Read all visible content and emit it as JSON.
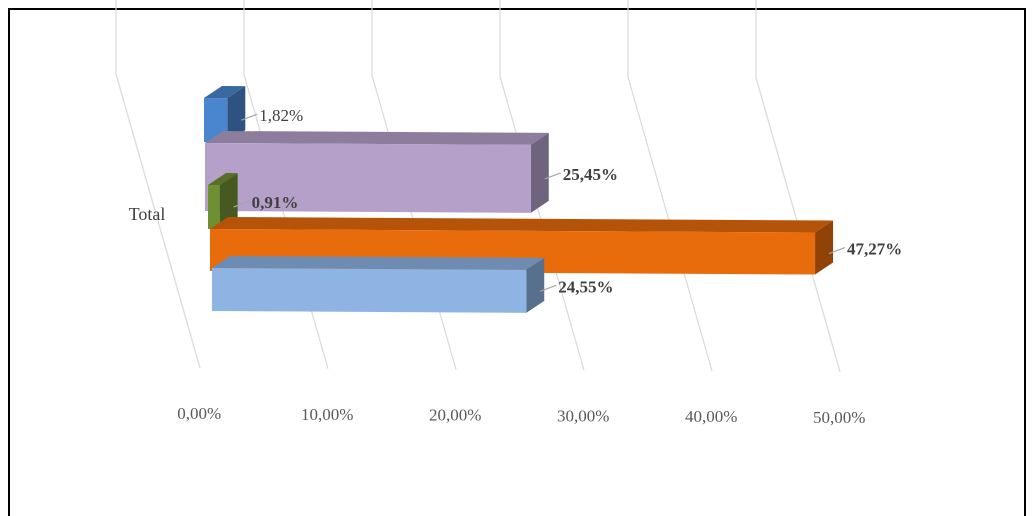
{
  "chart_data": {
    "type": "bar",
    "orientation": "horizontal",
    "style": "3d",
    "categories": [
      "Total"
    ],
    "xlim": [
      0,
      50
    ],
    "x_tick_labels": [
      "0,00%",
      "10,00%",
      "20,00%",
      "30,00%",
      "40,00%",
      "50,00%"
    ],
    "grid": true,
    "legend": "none",
    "series": [
      {
        "values": [
          1.82
        ],
        "label": "1,82%",
        "color": "#4a86d0",
        "bold": false
      },
      {
        "values": [
          25.45
        ],
        "label": "25,45%",
        "color": "#b4a0c9",
        "bold": true
      },
      {
        "values": [
          0.91
        ],
        "label": "0,91%",
        "color": "#6f8f33",
        "bold": true
      },
      {
        "values": [
          47.27
        ],
        "label": "47,27%",
        "color": "#e86b0c",
        "bold": true
      },
      {
        "values": [
          24.55
        ],
        "label": "24,55%",
        "color": "#8db4e3",
        "bold": true
      }
    ]
  }
}
